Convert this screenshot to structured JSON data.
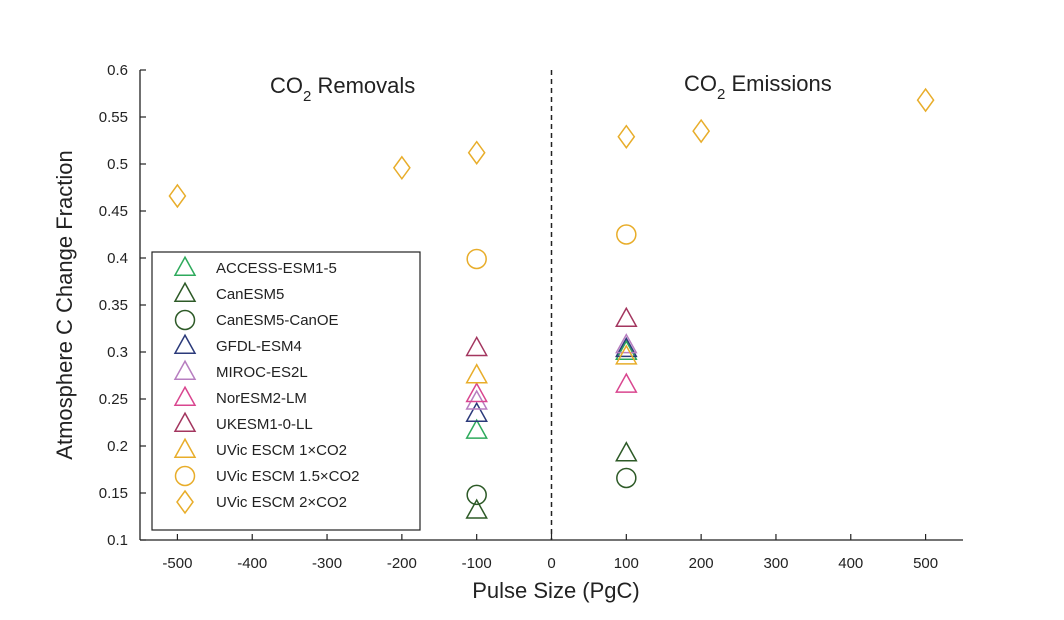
{
  "chart_data": {
    "type": "scatter",
    "xlabel": "Pulse Size (PgC)",
    "ylabel": "Atmosphere C Change Fraction",
    "xlim": [
      -550,
      550
    ],
    "ylim": [
      0.1,
      0.6
    ],
    "xticks": [
      -500,
      -400,
      -300,
      -200,
      -100,
      0,
      100,
      200,
      300,
      400,
      500
    ],
    "xtick_labels": [
      "-500",
      "-400",
      "-300",
      "-200",
      "-100",
      "0",
      "100",
      "200",
      "300",
      "400",
      "500"
    ],
    "yticks": [
      0.1,
      0.15,
      0.2,
      0.25,
      0.3,
      0.35,
      0.4,
      0.45,
      0.5,
      0.55,
      0.6
    ],
    "ytick_labels": [
      "0.1",
      "0.15",
      "0.2",
      "0.25",
      "0.3",
      "0.35",
      "0.4",
      "0.45",
      "0.5",
      "0.55",
      "0.6"
    ],
    "grid": false,
    "legend_position": "lower-left",
    "vline_x": 0,
    "annotations": [
      {
        "main": "CO",
        "sub": "2",
        "rest": " Removals"
      },
      {
        "main": "CO",
        "sub": "2",
        "rest": " Emissions"
      }
    ],
    "series": [
      {
        "name": "ACCESS-ESM1-5",
        "marker": "triangle",
        "color": "#2eaa5c",
        "points": [
          [
            -100,
            0.216
          ],
          [
            100,
            0.3
          ]
        ]
      },
      {
        "name": "CanESM5",
        "marker": "triangle",
        "color": "#2d5a27",
        "points": [
          [
            -100,
            0.131
          ],
          [
            100,
            0.192
          ]
        ]
      },
      {
        "name": "CanESM5-CanOE",
        "marker": "circle",
        "color": "#2d5a27",
        "points": [
          [
            -100,
            0.148
          ],
          [
            100,
            0.166
          ]
        ]
      },
      {
        "name": "GFDL-ESM4",
        "marker": "triangle",
        "color": "#2b3a7a",
        "points": [
          [
            -100,
            0.234
          ],
          [
            100,
            0.303
          ]
        ]
      },
      {
        "name": "MIROC-ES2L",
        "marker": "triangle",
        "color": "#b77ec0",
        "points": [
          [
            -100,
            0.247
          ],
          [
            100,
            0.307
          ]
        ]
      },
      {
        "name": "NorESM2-LM",
        "marker": "triangle",
        "color": "#d9468f",
        "points": [
          [
            -100,
            0.255
          ],
          [
            100,
            0.265
          ]
        ]
      },
      {
        "name": "UKESM1-0-LL",
        "marker": "triangle",
        "color": "#a3365f",
        "points": [
          [
            -100,
            0.304
          ],
          [
            100,
            0.335
          ]
        ]
      },
      {
        "name": "UVic ESCM 1×CO2",
        "marker": "triangle",
        "color": "#e8ad2a",
        "points": [
          [
            -100,
            0.275
          ],
          [
            100,
            0.295
          ]
        ]
      },
      {
        "name": "UVic ESCM 1.5×CO2",
        "marker": "circle",
        "color": "#e8ad2a",
        "points": [
          [
            -100,
            0.399
          ],
          [
            100,
            0.425
          ]
        ]
      },
      {
        "name": "UVic ESCM 2×CO2",
        "marker": "diamond",
        "color": "#e8ad2a",
        "points": [
          [
            -500,
            0.466
          ],
          [
            -200,
            0.496
          ],
          [
            -100,
            0.512
          ],
          [
            100,
            0.529
          ],
          [
            200,
            0.535
          ],
          [
            500,
            0.568
          ]
        ]
      }
    ]
  }
}
